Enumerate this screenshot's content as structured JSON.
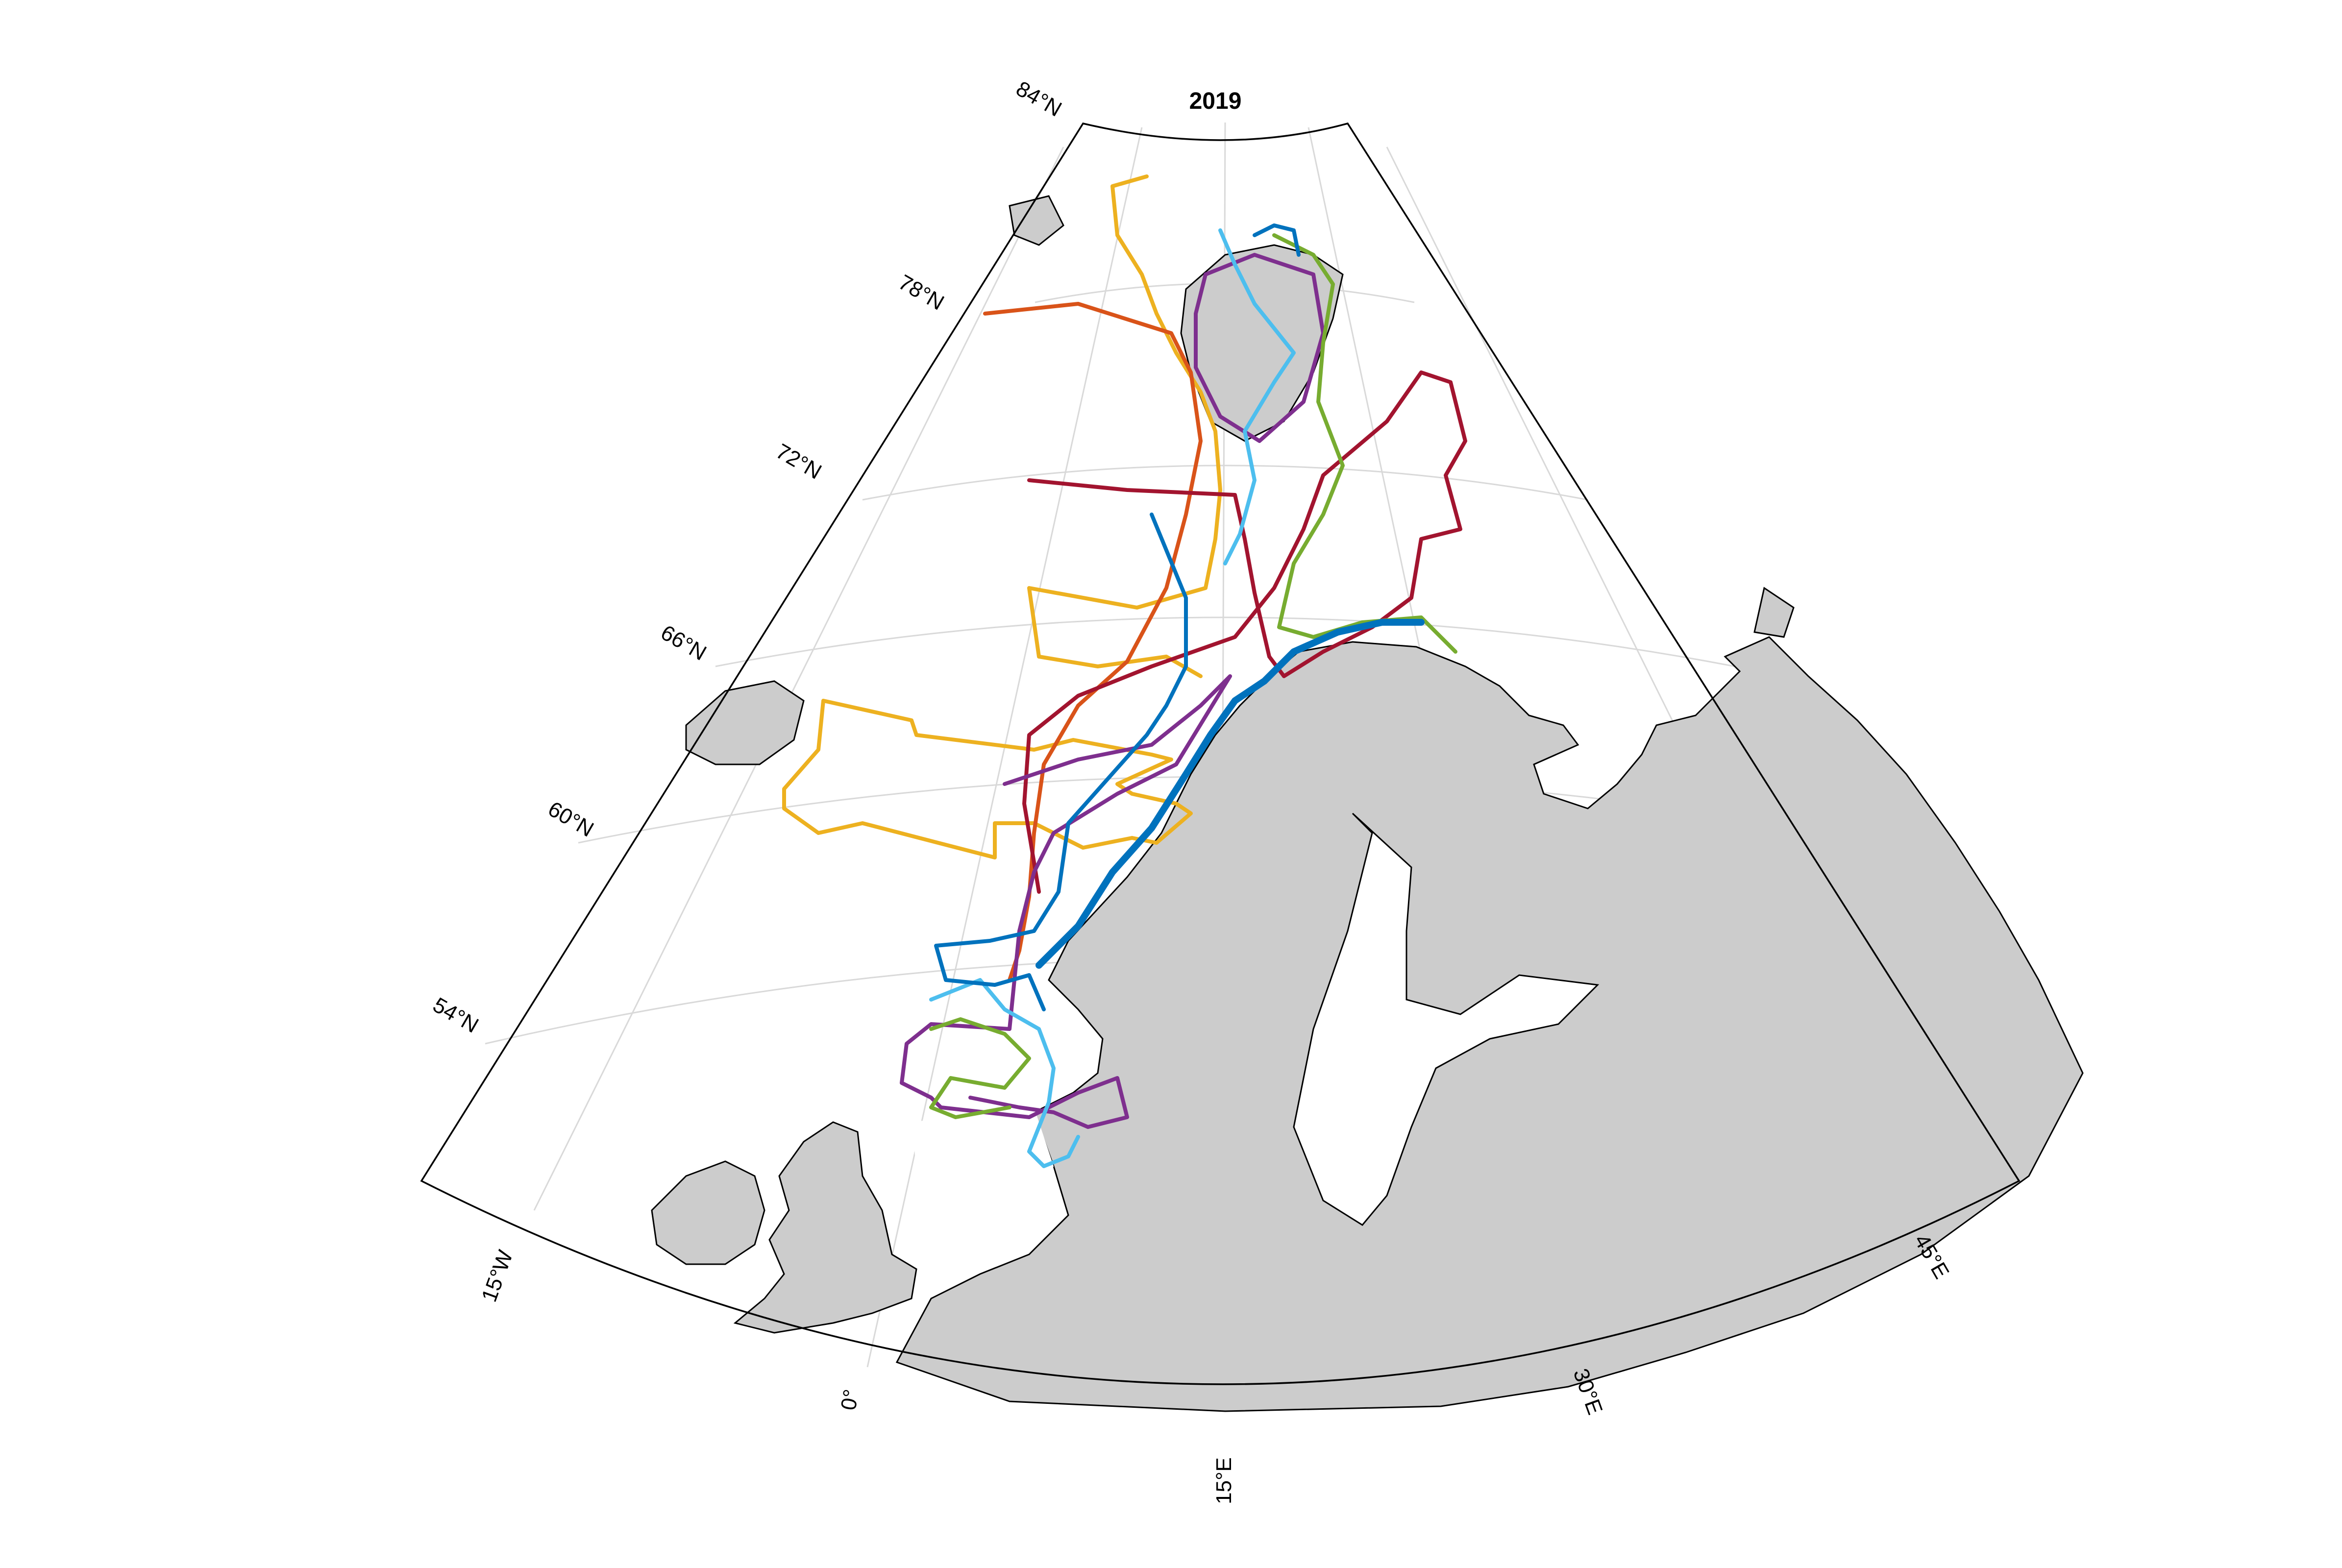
{
  "title": "2019",
  "lat_labels": [
    "84°N",
    "78°N",
    "72°N",
    "66°N",
    "60°N",
    "54°N"
  ],
  "lon_labels": [
    "15°W",
    "0°",
    "15°E",
    "30°E",
    "45°E"
  ],
  "colors": {
    "land": "#cccccc",
    "coast": "#000000",
    "frame": "#000000",
    "grid": "#d9d9d9",
    "tracks": [
      "#0072bd",
      "#d95319",
      "#edb120",
      "#7e2f8e",
      "#77ac30",
      "#4dbeee",
      "#a2142f"
    ]
  },
  "legend": []
}
